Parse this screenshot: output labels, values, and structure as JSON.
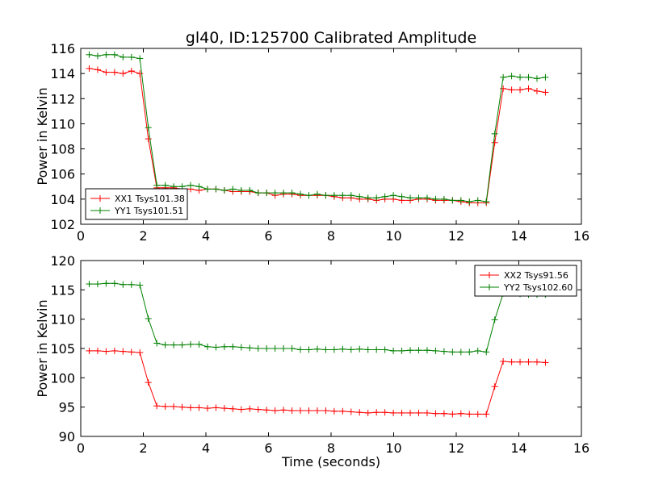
{
  "figure": {
    "title": "gl40, ID:125700 Calibrated Amplitude",
    "xlabel": "Time (seconds)"
  },
  "colors": {
    "red": "#ff0000",
    "green": "#008000"
  },
  "chart_data": [
    {
      "type": "line",
      "title": "gl40, ID:125700 Calibrated Amplitude",
      "xlabel": "",
      "ylabel": "Power in Kelvin",
      "xlim": [
        0,
        16
      ],
      "ylim": [
        102,
        116
      ],
      "xticks": [
        "0",
        "2",
        "4",
        "6",
        "8",
        "10",
        "12",
        "14",
        "16"
      ],
      "yticks": [
        "102",
        "104",
        "106",
        "108",
        "110",
        "112",
        "114",
        "116"
      ],
      "grid": false,
      "legend_position": "lower-left",
      "x": [
        0.27,
        0.54,
        0.81,
        1.08,
        1.35,
        1.62,
        1.89,
        2.16,
        2.43,
        2.7,
        2.97,
        3.24,
        3.51,
        3.78,
        4.05,
        4.32,
        4.59,
        4.86,
        5.13,
        5.4,
        5.67,
        5.94,
        6.21,
        6.48,
        6.75,
        7.02,
        7.29,
        7.56,
        7.83,
        8.1,
        8.37,
        8.64,
        8.91,
        9.18,
        9.45,
        9.72,
        9.99,
        10.26,
        10.53,
        10.8,
        11.07,
        11.34,
        11.61,
        11.88,
        12.15,
        12.42,
        12.69,
        12.96,
        13.23,
        13.5,
        13.77,
        14.04,
        14.31,
        14.58,
        14.85
      ],
      "series": [
        {
          "name": "XX1 Tsys101.38",
          "color": "#ff0000",
          "values": [
            114.4,
            114.3,
            114.1,
            114.1,
            114.0,
            114.2,
            114.0,
            108.8,
            104.9,
            104.9,
            104.9,
            104.8,
            104.8,
            104.7,
            104.8,
            104.8,
            104.7,
            104.6,
            104.6,
            104.6,
            104.5,
            104.5,
            104.3,
            104.4,
            104.4,
            104.3,
            104.3,
            104.3,
            104.3,
            104.2,
            104.1,
            104.1,
            104.0,
            104.0,
            103.9,
            104.0,
            104.0,
            103.9,
            103.9,
            104.0,
            104.0,
            103.9,
            103.9,
            103.9,
            103.8,
            103.7,
            103.7,
            103.7,
            108.5,
            112.8,
            112.7,
            112.7,
            112.8,
            112.6,
            112.5
          ]
        },
        {
          "name": "YY1 Tsys101.51",
          "color": "#008000",
          "values": [
            115.5,
            115.4,
            115.5,
            115.5,
            115.3,
            115.3,
            115.2,
            109.7,
            105.1,
            105.1,
            105.0,
            105.0,
            105.1,
            105.0,
            104.8,
            104.8,
            104.7,
            104.8,
            104.7,
            104.7,
            104.5,
            104.5,
            104.5,
            104.5,
            104.5,
            104.4,
            104.3,
            104.4,
            104.3,
            104.3,
            104.3,
            104.3,
            104.2,
            104.1,
            104.1,
            104.2,
            104.3,
            104.2,
            104.1,
            104.1,
            104.1,
            104.0,
            104.0,
            103.9,
            103.9,
            103.8,
            103.9,
            103.8,
            109.2,
            113.7,
            113.8,
            113.7,
            113.7,
            113.6,
            113.7
          ]
        }
      ]
    },
    {
      "type": "line",
      "title": "",
      "xlabel": "Time (seconds)",
      "ylabel": "Power in Kelvin",
      "xlim": [
        0,
        16
      ],
      "ylim": [
        90,
        120
      ],
      "xticks": [
        "0",
        "2",
        "4",
        "6",
        "8",
        "10",
        "12",
        "14",
        "16"
      ],
      "yticks": [
        "90",
        "95",
        "100",
        "105",
        "110",
        "115",
        "120"
      ],
      "grid": false,
      "legend_position": "upper-right",
      "x": [
        0.27,
        0.54,
        0.81,
        1.08,
        1.35,
        1.62,
        1.89,
        2.16,
        2.43,
        2.7,
        2.97,
        3.24,
        3.51,
        3.78,
        4.05,
        4.32,
        4.59,
        4.86,
        5.13,
        5.4,
        5.67,
        5.94,
        6.21,
        6.48,
        6.75,
        7.02,
        7.29,
        7.56,
        7.83,
        8.1,
        8.37,
        8.64,
        8.91,
        9.18,
        9.45,
        9.72,
        9.99,
        10.26,
        10.53,
        10.8,
        11.07,
        11.34,
        11.61,
        11.88,
        12.15,
        12.42,
        12.69,
        12.96,
        13.23,
        13.5,
        13.77,
        14.04,
        14.31,
        14.58,
        14.85
      ],
      "series": [
        {
          "name": "XX2 Tsys91.56",
          "color": "#ff0000",
          "values": [
            104.6,
            104.6,
            104.5,
            104.6,
            104.5,
            104.4,
            104.3,
            99.2,
            95.2,
            95.1,
            95.1,
            95.0,
            94.9,
            94.9,
            94.8,
            94.9,
            94.8,
            94.7,
            94.6,
            94.7,
            94.6,
            94.5,
            94.4,
            94.5,
            94.4,
            94.4,
            94.4,
            94.4,
            94.4,
            94.3,
            94.3,
            94.2,
            94.1,
            94.0,
            94.1,
            94.1,
            94.0,
            94.0,
            94.0,
            94.0,
            94.0,
            93.9,
            93.9,
            93.8,
            93.9,
            93.8,
            93.8,
            93.8,
            98.5,
            102.8,
            102.7,
            102.7,
            102.7,
            102.7,
            102.6
          ]
        },
        {
          "name": "YY2 Tsys102.60",
          "color": "#008000",
          "values": [
            116.0,
            116.0,
            116.1,
            116.1,
            115.9,
            115.9,
            115.8,
            110.1,
            105.9,
            105.6,
            105.6,
            105.6,
            105.7,
            105.7,
            105.3,
            105.2,
            105.3,
            105.3,
            105.2,
            105.1,
            105.0,
            105.0,
            105.0,
            105.0,
            105.0,
            104.8,
            104.8,
            104.9,
            104.8,
            104.8,
            104.9,
            104.8,
            104.9,
            104.8,
            104.8,
            104.8,
            104.6,
            104.6,
            104.7,
            104.7,
            104.7,
            104.6,
            104.5,
            104.4,
            104.4,
            104.4,
            104.6,
            104.4,
            109.9,
            114.4,
            114.5,
            114.3,
            114.2,
            114.2,
            114.2
          ]
        }
      ]
    }
  ]
}
